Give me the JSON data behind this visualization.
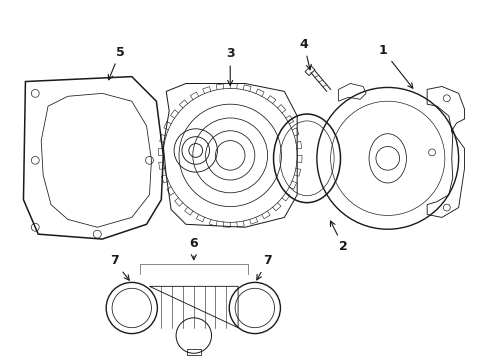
{
  "background_color": "#ffffff",
  "line_color": "#1a1a1a",
  "lw": 0.8,
  "fig_width": 4.89,
  "fig_height": 3.6,
  "font_size": 9
}
